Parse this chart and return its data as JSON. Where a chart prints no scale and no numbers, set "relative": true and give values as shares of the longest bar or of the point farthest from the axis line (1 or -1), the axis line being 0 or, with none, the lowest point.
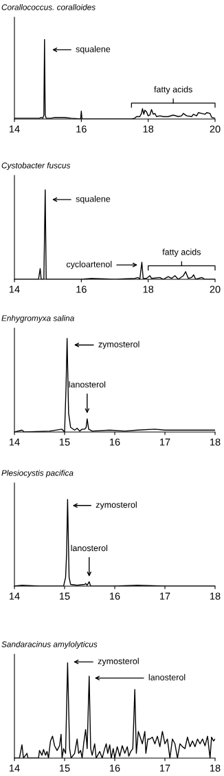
{
  "chart_data": [
    {
      "type": "line",
      "title": "Corallococcus. coralloides",
      "relative": true,
      "tick_labels": "x",
      "grid": false,
      "legend": false,
      "color": "#000000",
      "x": [
        14.0,
        14.5,
        14.75,
        14.8,
        14.85,
        14.88,
        14.9,
        14.92,
        14.95,
        15.1,
        15.2,
        15.5,
        15.7,
        15.98,
        16.0,
        16.02,
        16.5,
        17.0,
        17.5,
        17.6,
        17.65,
        17.75,
        17.8,
        17.83,
        17.87,
        17.9,
        17.95,
        18.0,
        18.05,
        18.1,
        18.15,
        18.2,
        18.25,
        18.35,
        18.45,
        18.6,
        18.75,
        18.9,
        19.0,
        19.05,
        19.15,
        19.3,
        19.35,
        19.45,
        19.5,
        19.6,
        19.7,
        19.75,
        19.85,
        19.9,
        20.0
      ],
      "values": [
        0.01,
        0.01,
        0.01,
        0.02,
        0.01,
        0.05,
        1.0,
        0.05,
        0.01,
        0.01,
        0.02,
        0.02,
        0.01,
        0.0,
        0.1,
        0.0,
        0.0,
        0.0,
        0.0,
        0.01,
        0.03,
        0.03,
        0.07,
        0.13,
        0.06,
        0.11,
        0.09,
        0.04,
        0.05,
        0.12,
        0.06,
        0.07,
        0.03,
        0.04,
        0.03,
        0.03,
        0.05,
        0.03,
        0.04,
        0.07,
        0.04,
        0.03,
        0.06,
        0.04,
        0.08,
        0.07,
        0.06,
        0.08,
        0.07,
        0.02,
        0.01
      ],
      "xlim": [
        14,
        20
      ],
      "xticks": [
        14,
        16,
        18,
        20
      ],
      "annotations": [
        "squalene",
        "fatty acids"
      ]
    },
    {
      "type": "line",
      "title": "Cystobacter fuscus",
      "relative": true,
      "tick_labels": "x",
      "grid": false,
      "legend": false,
      "color": "#000000",
      "x": [
        14.0,
        14.5,
        14.72,
        14.77,
        14.8,
        14.88,
        14.92,
        14.95,
        15.5,
        16.0,
        16.3,
        17.0,
        17.6,
        17.7,
        17.75,
        17.81,
        17.85,
        17.95,
        18.05,
        18.1,
        18.35,
        18.45,
        18.6,
        18.7,
        18.8,
        18.9,
        19.05,
        19.12,
        19.2,
        19.3,
        19.36,
        19.42,
        19.6,
        19.7,
        20.0
      ],
      "values": [
        0.0,
        0.0,
        0.0,
        0.12,
        0.0,
        0.0,
        1.0,
        0.0,
        0.0,
        0.0,
        0.01,
        0.0,
        0.01,
        0.02,
        0.0,
        0.19,
        0.01,
        0.01,
        0.04,
        0.01,
        0.02,
        0.0,
        0.03,
        0.01,
        0.04,
        0.0,
        0.04,
        0.085,
        0.01,
        0.02,
        0.05,
        0.0,
        0.02,
        0.0,
        0.0
      ],
      "xlim": [
        14,
        20
      ],
      "xticks": [
        14,
        16,
        18,
        20
      ],
      "annotations": [
        "squalene",
        "cycloartenol",
        "fatty acids"
      ]
    },
    {
      "type": "line",
      "title": "Enhygromyxa salina",
      "relative": true,
      "tick_labels": "x",
      "grid": false,
      "legend": false,
      "color": "#000000",
      "x": [
        14.0,
        14.15,
        14.2,
        14.7,
        14.95,
        15.0,
        15.03,
        15.05,
        15.08,
        15.12,
        15.2,
        15.25,
        15.3,
        15.35,
        15.4,
        15.43,
        15.45,
        15.48,
        15.55,
        15.9,
        16.2,
        16.45,
        16.8,
        17.0,
        17.5,
        18.0
      ],
      "values": [
        0.0,
        0.02,
        0.0,
        0.01,
        0.03,
        0.0,
        0.5,
        1.0,
        0.2,
        0.05,
        0.02,
        0.04,
        0.01,
        0.03,
        0.03,
        0.05,
        0.14,
        0.03,
        0.01,
        0.02,
        0.01,
        0.02,
        0.03,
        0.02,
        0.02,
        0.02
      ],
      "xlim": [
        14,
        18
      ],
      "xticks": [
        14,
        15,
        16,
        17,
        18
      ],
      "annotations": [
        "zymosterol",
        "lanosterol"
      ]
    },
    {
      "type": "line",
      "title": "Plesiocystis pacifica",
      "relative": true,
      "tick_labels": "x",
      "grid": false,
      "legend": false,
      "color": "#000000",
      "x": [
        14.0,
        14.15,
        14.5,
        14.98,
        15.02,
        15.04,
        15.06,
        15.09,
        15.12,
        15.25,
        15.4,
        15.42,
        15.45,
        15.49,
        15.52,
        16.0,
        16.45,
        17.0,
        18.0
      ],
      "values": [
        0.0,
        0.01,
        0.0,
        0.0,
        0.1,
        0.37,
        1.0,
        0.1,
        0.02,
        0.01,
        0.02,
        0.03,
        0.01,
        0.05,
        0.0,
        0.0,
        0.01,
        0.0,
        0.0
      ],
      "xlim": [
        14,
        18
      ],
      "xticks": [
        14,
        15,
        16,
        17,
        18
      ],
      "annotations": [
        "zymosterol",
        "lanosterol"
      ]
    },
    {
      "type": "line",
      "title": "Sandaracinus amylolyticus",
      "relative": true,
      "tick_labels": "x",
      "grid": false,
      "legend": false,
      "color": "#000000",
      "x": [
        14.0,
        14.1,
        14.15,
        14.18,
        14.25,
        14.27,
        14.48,
        14.5,
        14.55,
        14.58,
        14.62,
        14.65,
        14.68,
        14.7,
        14.72,
        14.76,
        14.8,
        14.85,
        14.9,
        14.93,
        14.95,
        14.98,
        15.02,
        15.06,
        15.1,
        15.13,
        15.2,
        15.25,
        15.28,
        15.32,
        15.35,
        15.38,
        15.42,
        15.45,
        15.49,
        15.52,
        15.55,
        15.6,
        15.63,
        15.7,
        15.75,
        15.8,
        15.83,
        15.86,
        15.9,
        15.93,
        15.97,
        16.0,
        16.05,
        16.1,
        16.15,
        16.2,
        16.25,
        16.28,
        16.32,
        16.36,
        16.4,
        16.43,
        16.47,
        16.52,
        16.55,
        16.6,
        16.62,
        16.66,
        16.7,
        16.75,
        16.8,
        16.85,
        16.9,
        16.95,
        17.0,
        17.05,
        17.1,
        17.15,
        17.2,
        17.25,
        17.3,
        17.35,
        17.4,
        17.45,
        17.5,
        17.55,
        17.6,
        17.65,
        17.7,
        17.75,
        17.8,
        17.85,
        17.9,
        17.93,
        17.97,
        18.0
      ],
      "values": [
        0,
        0,
        0.14,
        0.0,
        0.05,
        0,
        0,
        0.08,
        0.03,
        0.09,
        0.03,
        0.07,
        0.0,
        0.1,
        0.18,
        0.23,
        0.13,
        0.08,
        0.13,
        0.25,
        0.0,
        0.1,
        0.05,
        1.0,
        0.1,
        0.0,
        0.05,
        0.2,
        0.05,
        0.08,
        0.0,
        0.15,
        0.3,
        0.1,
        0.86,
        0.1,
        0.03,
        0.15,
        0.0,
        0.07,
        0.0,
        0.1,
        0.15,
        0.05,
        0.14,
        0.0,
        0.1,
        0.0,
        0.12,
        0.02,
        0.13,
        0.05,
        0.12,
        0.02,
        0.07,
        0.1,
        0.72,
        0.05,
        0.28,
        0.2,
        0.15,
        0.28,
        0.05,
        0.2,
        0.2,
        0.22,
        0.15,
        0.23,
        0.12,
        0.28,
        0.15,
        0.2,
        0.0,
        0.2,
        0.15,
        0.0,
        0.15,
        0.12,
        0.1,
        0.22,
        0.12,
        0.18,
        0.12,
        0.2,
        0.15,
        0.2,
        0.13,
        0.23,
        0.0,
        0.22,
        0.18,
        0.2
      ],
      "xlim": [
        14,
        18
      ],
      "xticks": [
        14,
        15,
        16,
        17,
        18
      ],
      "annotations": [
        "zymosterol",
        "lanosterol"
      ]
    }
  ]
}
